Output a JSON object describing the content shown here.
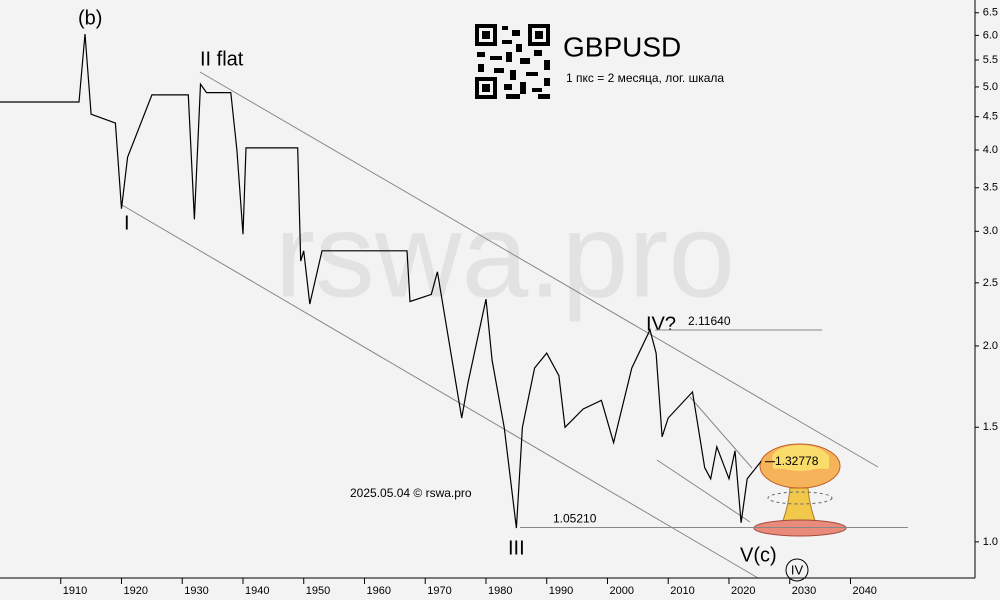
{
  "chart_data": {
    "type": "line",
    "title": "GBPUSD",
    "subtitle": "1 пкс = 2 месяца, лог. шкала",
    "watermark": "rswa.pro",
    "footnote": "2025.05.04 © rswa.pro",
    "annotations": [
      "(b)",
      "II flat",
      "I",
      "III",
      "IV?",
      "V(c)",
      "IV"
    ],
    "levels": [
      {
        "value": 2.1164,
        "label": "2.11640"
      },
      {
        "value": 1.0521,
        "label": "1.05210"
      },
      {
        "value": 1.32778,
        "label": "1.32778"
      }
    ],
    "log_scale": true,
    "color": "#000000",
    "x": [
      1900,
      1913,
      1914,
      1915,
      1919,
      1920,
      1921,
      1925,
      1931,
      1932,
      1933,
      1934,
      1938,
      1939,
      1940,
      1940.5,
      1949,
      1949.5,
      1950,
      1951,
      1953,
      1955,
      1967,
      1967.5,
      1971,
      1972,
      1976,
      1977,
      1980,
      1981,
      1983,
      1985,
      1986,
      1988,
      1990,
      1992,
      1993,
      1996,
      1999,
      2001,
      2004,
      2007,
      2008,
      2009,
      2010,
      2014,
      2016,
      2017,
      2018,
      2020,
      2021,
      2022,
      2023,
      2025.3
    ],
    "values": [
      4.74,
      4.74,
      6.03,
      4.54,
      4.4,
      3.25,
      3.9,
      4.86,
      4.86,
      3.13,
      5.05,
      4.9,
      4.9,
      4.0,
      2.97,
      4.03,
      4.03,
      2.7,
      2.8,
      2.32,
      2.8,
      2.8,
      2.8,
      2.34,
      2.4,
      2.6,
      1.55,
      1.75,
      2.36,
      1.9,
      1.5,
      1.05,
      1.5,
      1.85,
      1.95,
      1.8,
      1.5,
      1.6,
      1.65,
      1.42,
      1.85,
      2.1164,
      1.95,
      1.45,
      1.55,
      1.7,
      1.3,
      1.25,
      1.4,
      1.25,
      1.38,
      1.07,
      1.25,
      1.33
    ],
    "xlim": [
      1900,
      2060.5
    ],
    "ylim": [
      0.88,
      6.8
    ],
    "xticks": [
      1910,
      1920,
      1930,
      1940,
      1950,
      1960,
      1970,
      1980,
      1990,
      2000,
      2010,
      2020,
      2030,
      2040
    ],
    "yticks": [
      6.5,
      {
        "value": 6,
        "label": "6.0"
      },
      5.5,
      {
        "value": 5,
        "label": "5.0"
      },
      4.5,
      {
        "value": 4,
        "label": "4.0"
      },
      3.5,
      {
        "value": 3,
        "label": "3.0"
      },
      2.5,
      {
        "value": 2,
        "label": "2.0"
      },
      1.5,
      {
        "value": 1,
        "label": "1.0"
      }
    ]
  }
}
